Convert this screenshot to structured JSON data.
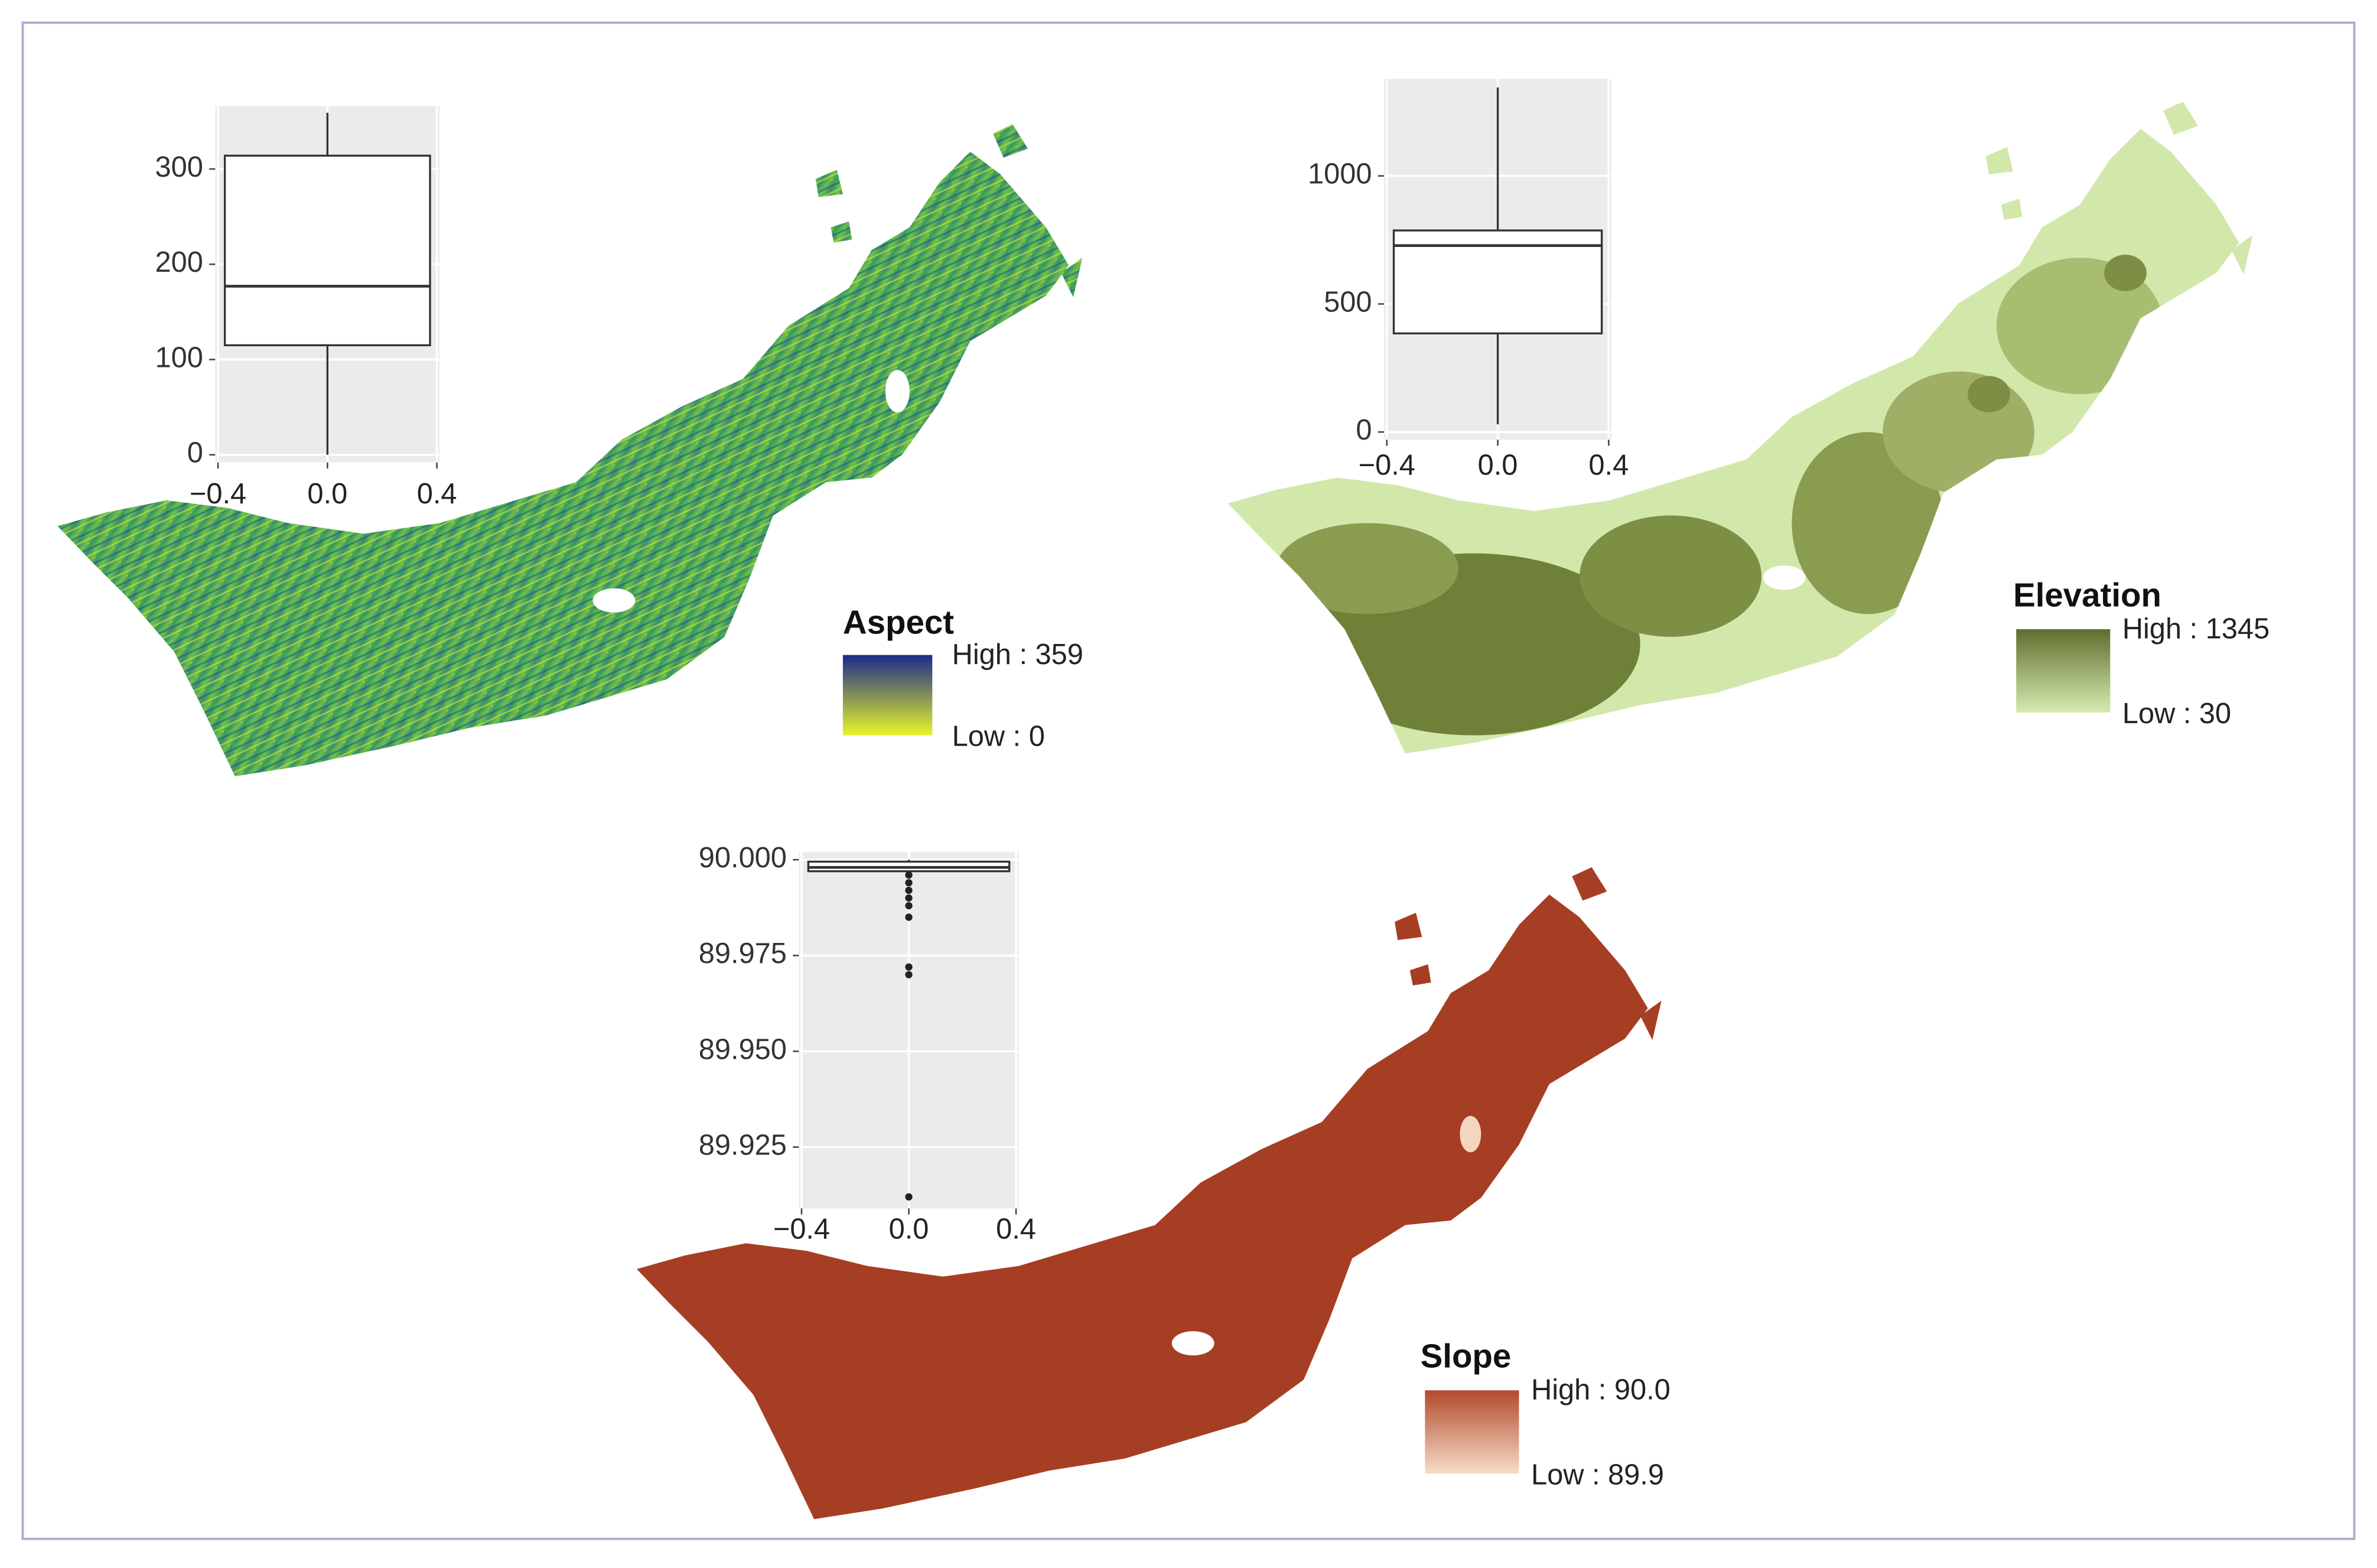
{
  "chart_data": [
    {
      "type": "box",
      "xlim": [
        -0.41,
        0.41
      ],
      "xticks": [
        {
          "value": -0.4,
          "label": "−0.4"
        },
        {
          "value": 0,
          "label": "0.0"
        },
        0.4
      ],
      "ylim": [
        -8,
        366
      ],
      "yticks": [
        0,
        100,
        200,
        300
      ],
      "grid": true,
      "whisker_low": 0,
      "q1": 115,
      "median": 177,
      "q3": 314,
      "whisker_high": 359,
      "outliers": [],
      "map": {
        "legend_title": "Aspect",
        "high_label": "High : 359",
        "low_label": "Low : 0",
        "high_color": "#1b2a8a",
        "low_color": "#e6f52a"
      }
    },
    {
      "type": "box",
      "xlim": [
        -0.41,
        0.41
      ],
      "xticks": [
        {
          "value": -0.4,
          "label": "−0.4"
        },
        {
          "value": 0,
          "label": "0.0"
        },
        0.4
      ],
      "ylim": [
        -30,
        1379
      ],
      "yticks": [
        0,
        500,
        1000
      ],
      "grid": true,
      "whisker_low": 30,
      "q1": 385,
      "median": 728,
      "q3": 787,
      "whisker_high": 1345,
      "outliers": [],
      "map": {
        "legend_title": "Elevation",
        "high_label": "High : 1345",
        "low_label": "Low : 30",
        "high_color": "#5f6e2e",
        "low_color": "#d6ebb0"
      }
    },
    {
      "type": "box",
      "xlim": [
        -0.41,
        0.41
      ],
      "xticks": [
        {
          "value": -0.4,
          "label": "−0.4"
        },
        {
          "value": 0,
          "label": "0.0"
        },
        0.4
      ],
      "ylim": [
        89.909,
        90.002
      ],
      "yticks": [
        {
          "value": 90,
          "label": "90.000"
        },
        89.975,
        {
          "value": 89.95,
          "label": "89.950"
        },
        89.925
      ],
      "grid": true,
      "whisker_low": 89.9965,
      "q1": 89.997,
      "median": 89.998,
      "q3": 89.9995,
      "whisker_high": 90,
      "outliers": [
        89.996,
        89.994,
        89.992,
        89.99,
        89.988,
        89.985,
        89.972,
        89.97,
        89.912
      ],
      "map": {
        "legend_title": "Slope",
        "high_label": "High : 90.0",
        "low_label": "Low : 89.9",
        "high_color": "#b24a2b",
        "low_color": "#f6dcc8"
      }
    }
  ]
}
